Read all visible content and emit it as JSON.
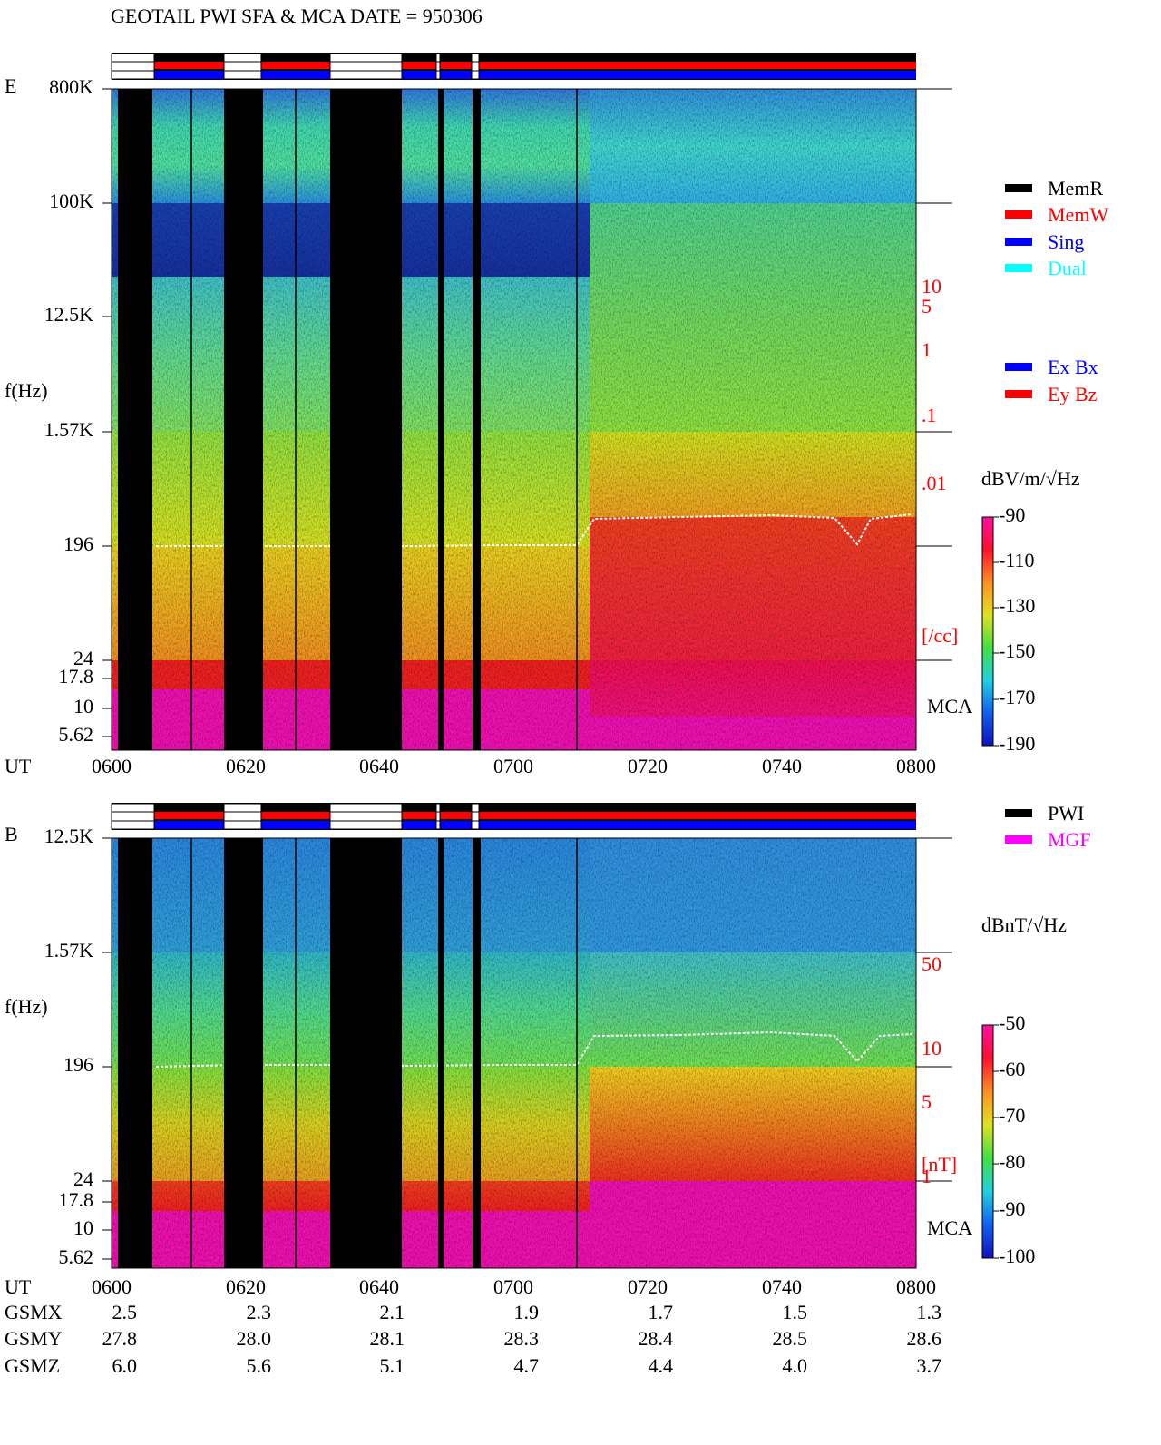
{
  "header": {
    "title": "GEOTAIL  PWI SFA & MCA   DATE = 950306"
  },
  "legend_mode": [
    {
      "label": "MemR",
      "color": "#000000"
    },
    {
      "label": "MemW",
      "color": "#ff0000"
    },
    {
      "label": "Sing",
      "color": "#0000ff"
    },
    {
      "label": "Dual",
      "color": "#00ffff"
    }
  ],
  "legend_antenna": [
    {
      "label": "Ex Bx",
      "color": "#0000ff"
    },
    {
      "label": "Ey Bz",
      "color": "#ff0000"
    }
  ],
  "legend_source": [
    {
      "label": "PWI",
      "color": "#000000"
    },
    {
      "label": "MGF",
      "color": "#ff00ff"
    }
  ],
  "panel_e": {
    "label": "E",
    "ylabel": "f(Hz)",
    "yticks": [
      "800K",
      "100K",
      "12.5K",
      "1.57K",
      "196",
      "24",
      "17.8",
      "10",
      "5.62"
    ],
    "density_ticks": [
      "10",
      "5",
      "1",
      ".1",
      ".01"
    ],
    "density_unit": "[/cc]",
    "mca": "MCA",
    "colorbar_unit": "dBV/m/√Hz",
    "colorbar_ticks": [
      "-90",
      "-110",
      "-130",
      "-150",
      "-170",
      "-190"
    ]
  },
  "panel_b": {
    "label": "B",
    "ylabel": "f(Hz)",
    "yticks": [
      "12.5K",
      "1.57K",
      "196",
      "24",
      "17.8",
      "10",
      "5.62"
    ],
    "density_ticks": [
      "50",
      "10",
      "5",
      "1"
    ],
    "density_unit": "[nT]",
    "mca": "MCA",
    "colorbar_unit": "dBnT/√Hz",
    "colorbar_ticks": [
      "-50",
      "-60",
      "-70",
      "-80",
      "-90",
      "-100"
    ]
  },
  "time_axis": {
    "label": "UT",
    "ticks": [
      "0600",
      "0620",
      "0640",
      "0700",
      "0720",
      "0740",
      "0800"
    ]
  },
  "ephemeris": [
    {
      "label": "GSMX",
      "values": [
        "2.5",
        "2.3",
        "2.1",
        "1.9",
        "1.7",
        "1.5",
        "1.3"
      ]
    },
    {
      "label": "GSMY",
      "values": [
        "27.8",
        "28.0",
        "28.1",
        "28.3",
        "28.4",
        "28.5",
        "28.6"
      ]
    },
    {
      "label": "GSMZ",
      "values": [
        "6.0",
        "5.6",
        "5.1",
        "4.7",
        "4.4",
        "4.0",
        "3.7"
      ]
    }
  ]
}
